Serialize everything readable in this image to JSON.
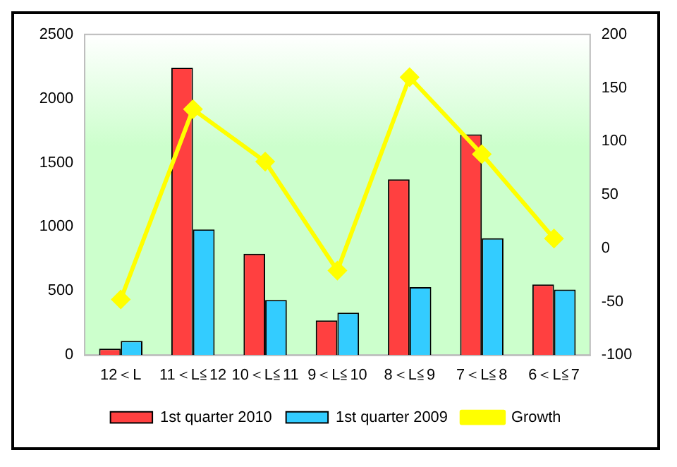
{
  "chart_data": {
    "type": "bar",
    "categories": [
      "12＜L",
      "11＜L≦12",
      "10＜L≦11",
      "9＜L≦10",
      "8＜L≦9",
      "7＜L≦8",
      "6＜L≦7"
    ],
    "series": [
      {
        "name": "1st quarter 2010",
        "color": "#ff4040",
        "values": [
          50,
          2240,
          790,
          270,
          1370,
          1720,
          550
        ]
      },
      {
        "name": "1st quarter 2009",
        "color": "#33ccff",
        "values": [
          110,
          980,
          430,
          330,
          530,
          910,
          510
        ]
      },
      {
        "name": "Growth",
        "type": "line",
        "axis": "y2",
        "color": "#ffff00",
        "marker": "diamond",
        "values": [
          -48,
          130,
          81,
          -21,
          160,
          88,
          9
        ]
      }
    ],
    "ylim": [
      0,
      2500
    ],
    "yticks": [
      0,
      500,
      1000,
      1500,
      2000,
      2500
    ],
    "y2lim": [
      -100,
      200
    ],
    "y2ticks": [
      -100,
      -50,
      0,
      50,
      100,
      150,
      200
    ],
    "legend": "bottom",
    "grid": false
  }
}
